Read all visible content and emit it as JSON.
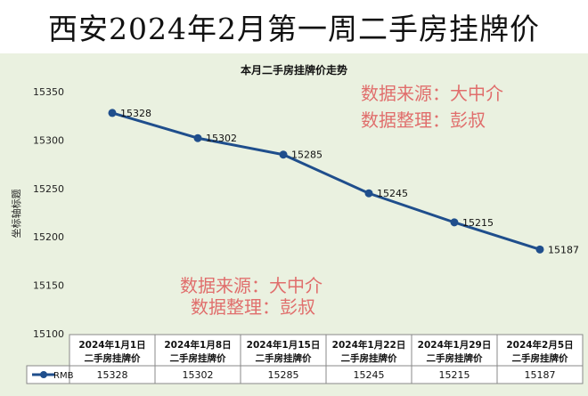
{
  "header": {
    "title": "西安2024年2月第一周二手房挂牌价"
  },
  "watermark": {
    "line1": "数据来源：大中介",
    "line2": "数据整理：彭叔",
    "color": "#e06060"
  },
  "chart_data": {
    "type": "line",
    "title": "本月二手房挂牌价走势",
    "ylabel": "坐标轴标题",
    "ylim": [
      15100,
      15350
    ],
    "yticks": [
      15100,
      15150,
      15200,
      15250,
      15300,
      15350
    ],
    "categories": [
      "2024年1月1日二手房挂牌价",
      "2024年1月8日二手房挂牌价",
      "2024年1月15日二手房挂牌价",
      "2024年1月22日二手房挂牌价",
      "2024年1月29日二手房挂牌价",
      "2024年2月5日二手房挂牌价"
    ],
    "series": [
      {
        "name": "RMB",
        "values": [
          15328,
          15302,
          15285,
          15245,
          15215,
          15187
        ],
        "color": "#1f4e8c"
      }
    ],
    "grid": false,
    "legend": "data-table",
    "background": "#eaf1e0"
  }
}
